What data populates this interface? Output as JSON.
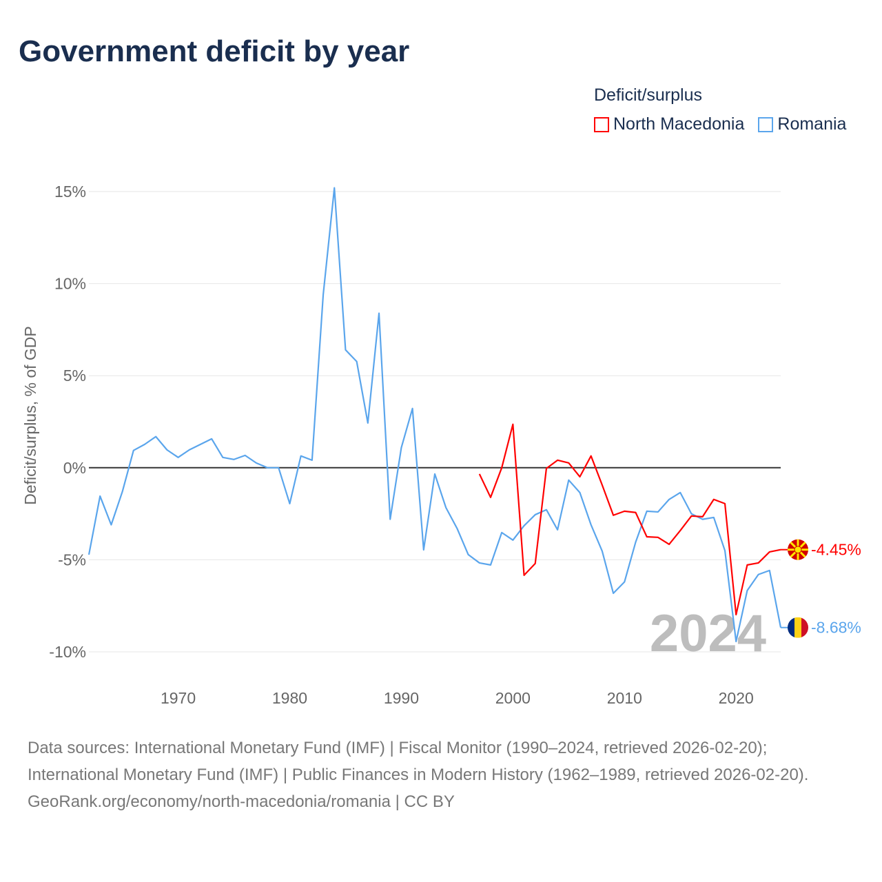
{
  "title": "Government deficit by year",
  "legend": {
    "title": "Deficit/surplus",
    "items": [
      "North Macedonia",
      "Romania"
    ]
  },
  "colors": {
    "north_macedonia": "#ff0000",
    "romania": "#5aa5ec"
  },
  "footer": {
    "sources": "Data sources: International Monetary Fund (IMF) | Fiscal Monitor (1990–2024, retrieved 2026-02-20); International Monetary Fund (IMF) | Public Finances in Modern History (1962–1989, retrieved 2026-02-20).",
    "credit": "GeoRank.org/economy/north-macedonia/romania | CC BY"
  },
  "chart_data": {
    "type": "line",
    "title": "Government deficit by year",
    "ylabel": "Deficit/surplus, % of GDP",
    "xlabel": "",
    "xlim": [
      1962,
      2024
    ],
    "ylim": [
      -10,
      15
    ],
    "yticks": [
      15,
      10,
      5,
      0,
      -5,
      -10
    ],
    "ytick_labels": [
      "15%",
      "10%",
      "5%",
      "0%",
      "-5%",
      "-10%"
    ],
    "xticks": [
      1970,
      1980,
      1990,
      2000,
      2010,
      2020
    ],
    "xtick_labels": [
      "1970",
      "1980",
      "1990",
      "2000",
      "2010",
      "2020"
    ],
    "year_watermark": "2024",
    "grid": true,
    "legend_position": "top-right",
    "series": [
      {
        "name": "North Macedonia",
        "color": "#ff0000",
        "end_label": "-4.45%",
        "start_year": 1997,
        "values": [
          -0.34,
          -1.61,
          0,
          2.36,
          -5.84,
          -5.2,
          -0.04,
          0.41,
          0.26,
          -0.49,
          0.64,
          -0.94,
          -2.58,
          -2.36,
          -2.43,
          -3.75,
          -3.78,
          -4.16,
          -3.41,
          -2.62,
          -2.66,
          -1.72,
          -1.95,
          -7.98,
          -5.28,
          -5.17,
          -4.57,
          -4.45
        ]
      },
      {
        "name": "Romania",
        "color": "#5aa5ec",
        "end_label": "-8.68%",
        "start_year": 1962,
        "values": [
          -4.72,
          -1.54,
          -3.1,
          -1.3,
          0.94,
          1.27,
          1.69,
          0.97,
          0.56,
          0.97,
          1.27,
          1.57,
          0.56,
          0.45,
          0.67,
          0.26,
          0,
          0,
          -1.95,
          0.64,
          0.41,
          9.4,
          15.2,
          6.4,
          5.77,
          2.43,
          8.39,
          -2.8,
          1.09,
          3.22,
          -4.46,
          -0.34,
          -2.17,
          -3.3,
          -4.72,
          -5.17,
          -5.28,
          -3.52,
          -3.93,
          -3.15,
          -2.55,
          -2.28,
          -3.37,
          -0.67,
          -1.35,
          -3.1,
          -4.53,
          -6.82,
          -6.2,
          -4.04,
          -2.36,
          -2.4,
          -1.72,
          -1.35,
          -2.5,
          -2.8,
          -2.7,
          -4.5,
          -9.44,
          -6.67,
          -5.8,
          -5.58,
          -8.68
        ]
      }
    ]
  }
}
